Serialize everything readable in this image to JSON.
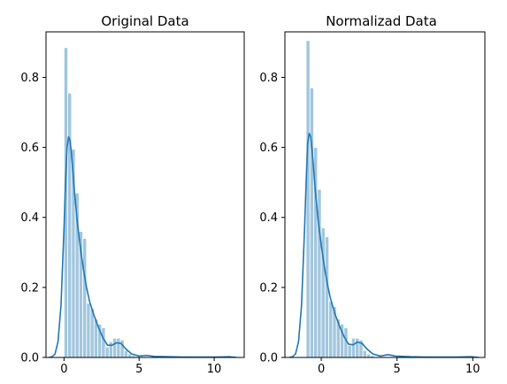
{
  "colors": {
    "hist_fill": "#a1c6de",
    "hist_edge": "#ffffff",
    "kde_line": "#1f77b4",
    "axes": "#000000"
  },
  "chart_data": [
    {
      "type": "histogram+kde",
      "title": "Original Data",
      "xlabel": "",
      "ylabel": "",
      "xlim": [
        -1.2,
        12.0
      ],
      "ylim": [
        0,
        0.93
      ],
      "xticks": [
        0,
        5,
        10
      ],
      "yticks": [
        0.0,
        0.2,
        0.4,
        0.6,
        0.8
      ],
      "xtick_labels": [
        "0",
        "5",
        "10"
      ],
      "ytick_labels": [
        "0.0",
        "0.2",
        "0.4",
        "0.6",
        "0.8"
      ],
      "grid": false,
      "bins": {
        "edges": [
          0.0,
          0.25,
          0.5,
          0.75,
          1.0,
          1.25,
          1.5,
          1.75,
          2.0,
          2.25,
          2.5,
          2.75,
          3.0,
          3.25,
          3.5,
          3.75,
          4.0,
          4.25,
          4.5,
          4.75
        ],
        "density": [
          0.885,
          0.755,
          0.595,
          0.47,
          0.36,
          0.34,
          0.155,
          0.14,
          0.11,
          0.095,
          0.085,
          0.03,
          0.045,
          0.055,
          0.055,
          0.05,
          0.02,
          0.01,
          0.005
        ]
      },
      "kde": {
        "x": [
          -1.0,
          -0.8,
          -0.6,
          -0.4,
          -0.2,
          0.0,
          0.1,
          0.2,
          0.3,
          0.4,
          0.5,
          0.7,
          0.9,
          1.1,
          1.3,
          1.5,
          1.7,
          2.0,
          2.3,
          2.6,
          2.9,
          3.2,
          3.5,
          3.8,
          4.1,
          4.5,
          5.0,
          5.5,
          6.0,
          7.0,
          8.0,
          9.0,
          10.0,
          11.0,
          11.5
        ],
        "y": [
          0.0,
          0.002,
          0.01,
          0.045,
          0.15,
          0.37,
          0.5,
          0.6,
          0.63,
          0.62,
          0.58,
          0.47,
          0.38,
          0.31,
          0.25,
          0.2,
          0.16,
          0.12,
          0.085,
          0.055,
          0.035,
          0.035,
          0.042,
          0.04,
          0.025,
          0.01,
          0.004,
          0.006,
          0.003,
          0.002,
          0.001,
          0.001,
          0.001,
          0.002,
          0.0
        ]
      }
    },
    {
      "type": "histogram+kde",
      "title": "Normalizad Data",
      "xlabel": "",
      "ylabel": "",
      "xlim": [
        -2.4,
        10.8
      ],
      "ylim": [
        0,
        0.93
      ],
      "xticks": [
        0,
        5,
        10
      ],
      "yticks": [
        0.0,
        0.2,
        0.4,
        0.6,
        0.8
      ],
      "xtick_labels": [
        "0",
        "5",
        "10"
      ],
      "ytick_labels": [
        "0.0",
        "0.2",
        "0.4",
        "0.6",
        "0.8"
      ],
      "grid": false,
      "bins": {
        "edges": [
          -1.0,
          -0.75,
          -0.5,
          -0.25,
          0.0,
          0.25,
          0.5,
          0.75,
          1.0,
          1.25,
          1.5,
          1.75,
          2.0,
          2.25,
          2.5,
          2.75,
          3.0,
          3.25,
          3.5
        ],
        "density": [
          0.905,
          0.77,
          0.6,
          0.48,
          0.37,
          0.345,
          0.16,
          0.145,
          0.11,
          0.095,
          0.085,
          0.035,
          0.055,
          0.055,
          0.05,
          0.02,
          0.01,
          0.005
        ]
      },
      "kde": {
        "x": [
          -2.1,
          -1.9,
          -1.7,
          -1.5,
          -1.3,
          -1.1,
          -1.0,
          -0.9,
          -0.8,
          -0.7,
          -0.6,
          -0.4,
          -0.2,
          0.0,
          0.2,
          0.4,
          0.6,
          0.9,
          1.2,
          1.5,
          1.8,
          2.1,
          2.4,
          2.7,
          3.0,
          3.4,
          3.9,
          4.4,
          4.9,
          5.9,
          6.9,
          7.9,
          8.9,
          9.9,
          10.4
        ],
        "y": [
          0.0,
          0.002,
          0.01,
          0.045,
          0.15,
          0.37,
          0.5,
          0.61,
          0.64,
          0.63,
          0.59,
          0.48,
          0.39,
          0.32,
          0.26,
          0.21,
          0.17,
          0.125,
          0.09,
          0.06,
          0.038,
          0.036,
          0.044,
          0.04,
          0.025,
          0.01,
          0.004,
          0.008,
          0.004,
          0.002,
          0.001,
          0.001,
          0.001,
          0.002,
          0.0
        ]
      }
    }
  ]
}
